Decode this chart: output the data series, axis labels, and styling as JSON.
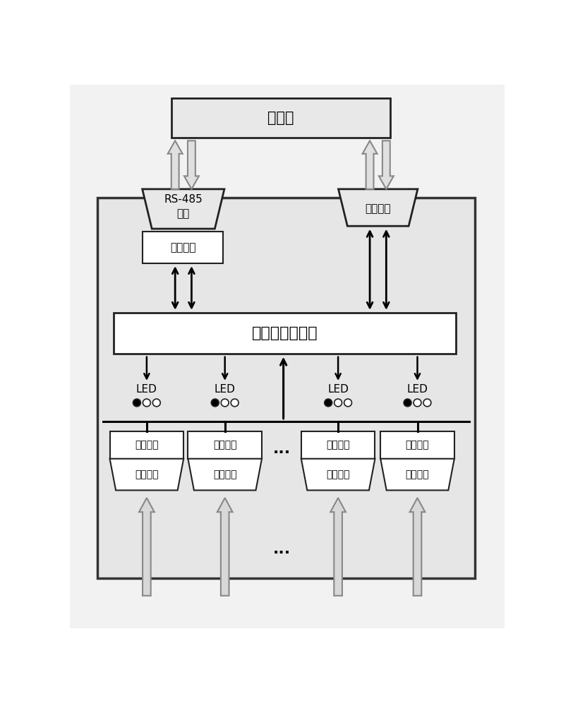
{
  "bg_color": "#f0f0f0",
  "white": "#ffffff",
  "light_gray": "#e8e8e8",
  "mid_gray": "#d0d0d0",
  "edge_dark": "#222222",
  "edge_mid": "#555555",
  "title_shang": "上位机",
  "title_plc": "可编程逻辑器件",
  "label_rs485": "RS-485\n接口",
  "label_guangxian": "光纤接口",
  "label_chafen1": "差分电路",
  "label_LED": "LED",
  "label_chafen": "差分电路",
  "label_input": "输入接口",
  "dots": "...",
  "fs_large": 15,
  "fs_med": 12,
  "fs_small": 11,
  "fs_dots": 16
}
